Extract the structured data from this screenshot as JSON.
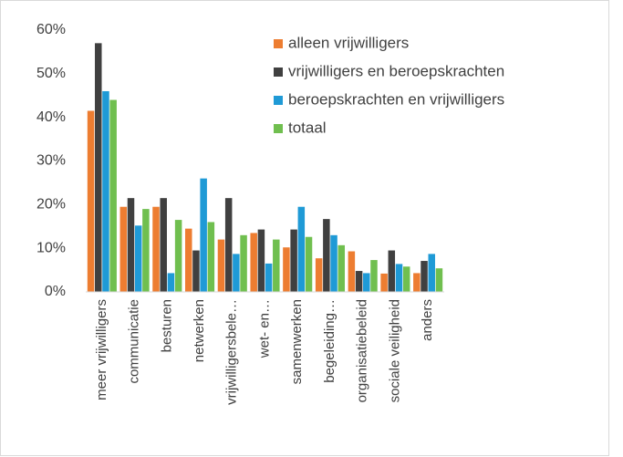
{
  "chart_data": {
    "type": "bar",
    "categories": [
      "meer vrijwilligers",
      "communicatie",
      "besturen",
      "netwerken",
      "vrijwilligersbele…",
      "wet- en…",
      "samenwerken",
      "begeleiding…",
      "organisatiebeleid",
      "sociale veiligheid",
      "anders"
    ],
    "series": [
      {
        "name": "alleen vrijwilligers",
        "color": "#ed7d31",
        "values": [
          41.5,
          19.5,
          19.5,
          14.5,
          12,
          13.5,
          10.2,
          7.7,
          9.3,
          4.2,
          4.3
        ]
      },
      {
        "name": "vrijwilligers en beroepskrachten",
        "color": "#404040",
        "values": [
          57,
          21.5,
          21.5,
          9.5,
          21.5,
          14.3,
          14.3,
          16.7,
          4.8,
          9.5,
          7.1
        ]
      },
      {
        "name": "beroepskrachten en vrijwilligers",
        "color": "#1f9ad6",
        "values": [
          46,
          15.2,
          4.3,
          26,
          8.7,
          6.5,
          19.5,
          13,
          4.3,
          6.4,
          8.7
        ]
      },
      {
        "name": "totaal",
        "color": "#70bf4f",
        "values": [
          44,
          19,
          16.5,
          16,
          13,
          12,
          12.6,
          10.7,
          7.3,
          5.8,
          5.4
        ]
      }
    ],
    "ylim": [
      0,
      60
    ],
    "yticks": [
      {
        "value": 0,
        "label": "0%"
      },
      {
        "value": 10,
        "label": "10%"
      },
      {
        "value": 20,
        "label": "20%"
      },
      {
        "value": 30,
        "label": "30%"
      },
      {
        "value": 40,
        "label": "40%"
      },
      {
        "value": 50,
        "label": "50%"
      },
      {
        "value": 60,
        "label": "60%"
      }
    ],
    "grid": false
  }
}
